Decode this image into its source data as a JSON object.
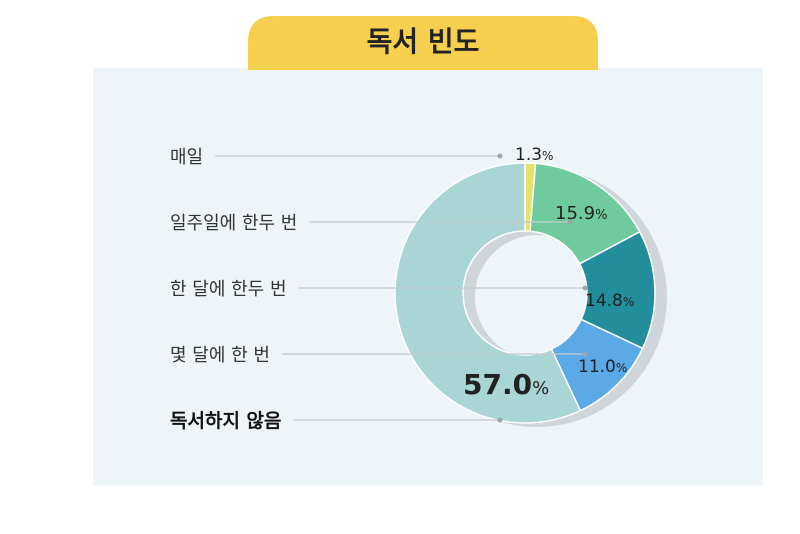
{
  "colors": {
    "panel": "#eef5f9",
    "title_bg": "#f7cf4f",
    "shadow": "#cfd5d8",
    "leader": "#c3cbcf"
  },
  "chart_data": {
    "type": "pie",
    "title": "독서 빈도",
    "unit": "%",
    "categories": [
      "매일",
      "일주일에 한두 번",
      "한 달에 한두 번",
      "몇 달에 한 번",
      "독서하지 않음"
    ],
    "values": [
      1.3,
      15.9,
      14.8,
      11.0,
      57.0
    ],
    "value_labels": [
      "1.3",
      "15.9",
      "14.8",
      "11.0",
      "57.0"
    ],
    "slice_colors": [
      "#e4e26a",
      "#6fcb9d",
      "#228e9c",
      "#5ba9e6",
      "#a9d5d4"
    ],
    "emphasized": "독서하지 않음",
    "legend": "left"
  }
}
